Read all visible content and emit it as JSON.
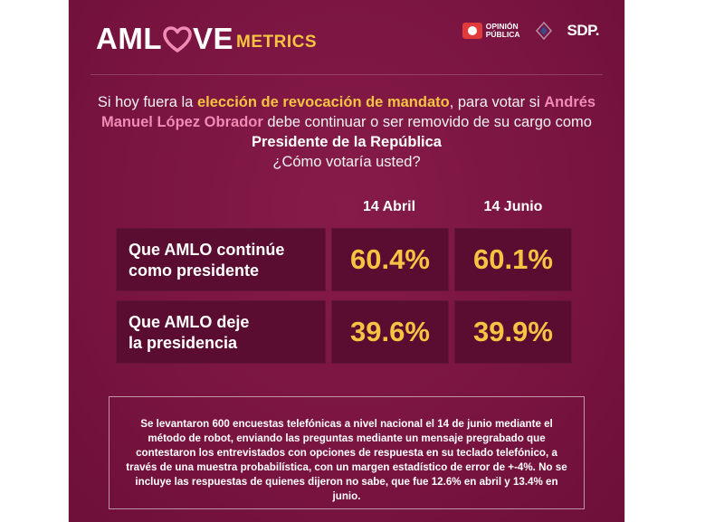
{
  "brand": {
    "logo_prefix": "AML",
    "logo_heart_letter": "O",
    "logo_suffix": "VE",
    "logo_metrics": "METRICS",
    "heart_icon": "heart-icon",
    "partner1_line1": "OPINIÓN",
    "partner1_line2": "PÚBLICA",
    "partner3": "SDP.",
    "colors": {
      "background": "#7e1642",
      "accent_yellow": "#f6c343",
      "accent_pink": "#f08bb4",
      "cell": "#5a0d30"
    }
  },
  "question": {
    "part1": "Si hoy fuera la ",
    "part2": "elección de revocación de mandato",
    "part3": ", para votar si ",
    "part4": "Andrés Manuel López Obrador",
    "part5": " debe continuar o ser removido de su cargo como ",
    "part6": "Presidente de la República",
    "part7": "¿Cómo votaría usted?"
  },
  "table": {
    "columns": [
      "14 Abril",
      "14 Junio"
    ],
    "rows": [
      {
        "label_line1": "Que AMLO continúe",
        "label_line2": "como presidente",
        "values": [
          "60.4%",
          "60.1%"
        ]
      },
      {
        "label_line1": "Que AMLO deje",
        "label_line2": "la presidencia",
        "values": [
          "39.6%",
          "39.9%"
        ]
      }
    ]
  },
  "note": "Se levantaron 600 encuestas telefónicas a nivel nacional el 14 de junio mediante el método de robot, enviando las preguntas mediante un mensaje pregrabado que contestaron los entrevistados con opciones de respuesta en su teclado telefónico, a través de una muestra probabilística, con un margen estadístico de error de +-4%. No se incluye las respuestas de quienes dijeron no sabe, que fue 12.6% en abril y 13.4% en junio."
}
